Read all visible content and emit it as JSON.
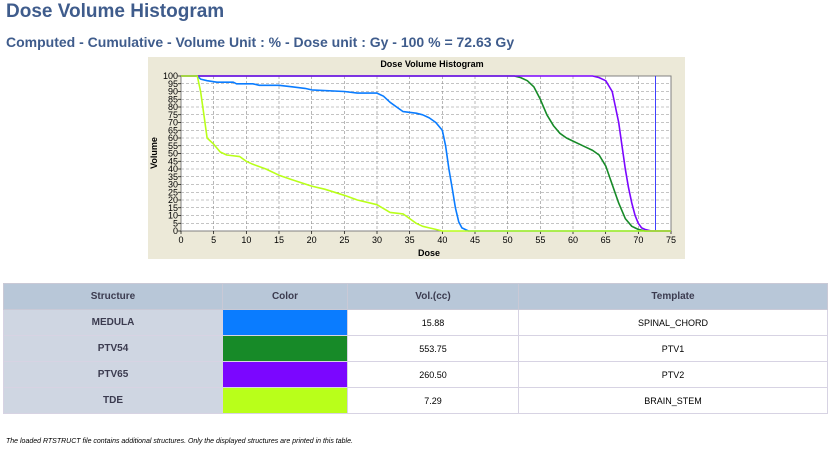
{
  "header": {
    "title": "Dose Volume Histogram",
    "subtitle": "Computed - Cumulative - Volume Unit : % - Dose unit : Gy - 100 % = 72.63 Gy"
  },
  "chart_data": {
    "type": "line",
    "title": "Dose Volume Histogram",
    "xlabel": "Dose",
    "ylabel": "Volume",
    "xlim": [
      0,
      75
    ],
    "ylim": [
      0,
      100
    ],
    "xticks": [
      0,
      5,
      10,
      15,
      20,
      25,
      30,
      35,
      40,
      45,
      50,
      55,
      60,
      65,
      70,
      75
    ],
    "yticks": [
      0,
      5,
      10,
      15,
      20,
      25,
      30,
      35,
      40,
      45,
      50,
      55,
      60,
      65,
      70,
      75,
      80,
      85,
      90,
      95,
      100
    ],
    "grid": true,
    "reference_line_x": 72.63,
    "series": [
      {
        "name": "MEDULA",
        "color": "#0a7cff",
        "points": [
          [
            0,
            100
          ],
          [
            2.5,
            100
          ],
          [
            3,
            98
          ],
          [
            4,
            97
          ],
          [
            5.5,
            96
          ],
          [
            8,
            96
          ],
          [
            8.5,
            95
          ],
          [
            11,
            95
          ],
          [
            12,
            94
          ],
          [
            15,
            94
          ],
          [
            17,
            93
          ],
          [
            19,
            92
          ],
          [
            20,
            91
          ],
          [
            25,
            90
          ],
          [
            27,
            89
          ],
          [
            30,
            89
          ],
          [
            31,
            87
          ],
          [
            32,
            83
          ],
          [
            33,
            80
          ],
          [
            34,
            77
          ],
          [
            36,
            76
          ],
          [
            37,
            75
          ],
          [
            38,
            73
          ],
          [
            39,
            70
          ],
          [
            40,
            65
          ],
          [
            40.5,
            55
          ],
          [
            41,
            40
          ],
          [
            41.5,
            28
          ],
          [
            42,
            15
          ],
          [
            42.5,
            6
          ],
          [
            43,
            2
          ],
          [
            44,
            0
          ],
          [
            75,
            0
          ]
        ]
      },
      {
        "name": "PTV54",
        "color": "#178a28",
        "points": [
          [
            0,
            100
          ],
          [
            51,
            100
          ],
          [
            52,
            99
          ],
          [
            53,
            97
          ],
          [
            54,
            93
          ],
          [
            55,
            85
          ],
          [
            56,
            75
          ],
          [
            57,
            68
          ],
          [
            58,
            63
          ],
          [
            59,
            60
          ],
          [
            60,
            58
          ],
          [
            61,
            56
          ],
          [
            62,
            54
          ],
          [
            63,
            52
          ],
          [
            64,
            49
          ],
          [
            65,
            42
          ],
          [
            66,
            30
          ],
          [
            67,
            18
          ],
          [
            68,
            8
          ],
          [
            69,
            3
          ],
          [
            70,
            1
          ],
          [
            71,
            0
          ],
          [
            75,
            0
          ]
        ]
      },
      {
        "name": "PTV65",
        "color": "#7b06ff",
        "points": [
          [
            0,
            100
          ],
          [
            63,
            100
          ],
          [
            64,
            99
          ],
          [
            65,
            97
          ],
          [
            66,
            90
          ],
          [
            67,
            70
          ],
          [
            67.5,
            55
          ],
          [
            68,
            40
          ],
          [
            68.5,
            28
          ],
          [
            69,
            18
          ],
          [
            69.5,
            10
          ],
          [
            70,
            5
          ],
          [
            70.5,
            2
          ],
          [
            71,
            1
          ],
          [
            72,
            0
          ],
          [
            75,
            0
          ]
        ]
      },
      {
        "name": "TDE",
        "color": "#b9ff1a",
        "points": [
          [
            0,
            100
          ],
          [
            2.5,
            100
          ],
          [
            3,
            90
          ],
          [
            3.5,
            75
          ],
          [
            4,
            60
          ],
          [
            5,
            56
          ],
          [
            6,
            51
          ],
          [
            7,
            49
          ],
          [
            9,
            48
          ],
          [
            10,
            45
          ],
          [
            11,
            43
          ],
          [
            13,
            40
          ],
          [
            15,
            36
          ],
          [
            17,
            33
          ],
          [
            20,
            29
          ],
          [
            22,
            27
          ],
          [
            25,
            23
          ],
          [
            27,
            20
          ],
          [
            30,
            17
          ],
          [
            32,
            12
          ],
          [
            34,
            11
          ],
          [
            35,
            8
          ],
          [
            36,
            5
          ],
          [
            37,
            3
          ],
          [
            38,
            2
          ],
          [
            39,
            1
          ],
          [
            40,
            0
          ],
          [
            75,
            0
          ]
        ]
      }
    ]
  },
  "table": {
    "headers": [
      "Structure",
      "Color",
      "Vol.(cc)",
      "Template"
    ],
    "rows": [
      {
        "structure": "MEDULA",
        "color": "#0a7cff",
        "volume": "15.88",
        "template": "SPINAL_CHORD"
      },
      {
        "structure": "PTV54",
        "color": "#178a28",
        "volume": "553.75",
        "template": "PTV1"
      },
      {
        "structure": "PTV65",
        "color": "#7b06ff",
        "volume": "260.50",
        "template": "PTV2"
      },
      {
        "structure": "TDE",
        "color": "#b9ff1a",
        "volume": "7.29",
        "template": "BRAIN_STEM"
      }
    ]
  },
  "footnote": "The loaded RTSTRUCT file contains additional structures. Only the displayed structures are printed in this table."
}
